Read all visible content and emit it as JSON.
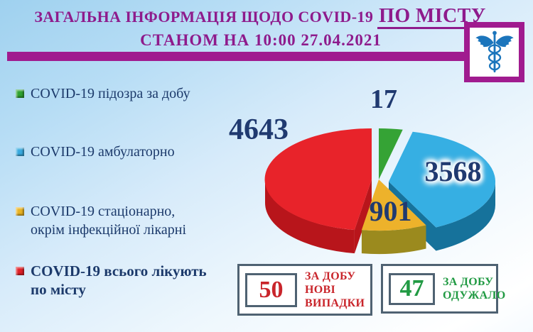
{
  "header": {
    "title_main": "ЗАГАЛЬНА ІНФОРМАЦІЯ ЩОДО COVID-19",
    "title_emph": "ПО МІСТУ",
    "subtitle": "СТАНОМ НА 10:00 27.04.2021"
  },
  "logo": {
    "icon": "caduceus-icon",
    "border_color": "#a01b8f",
    "glyph_color": "#1b75bc"
  },
  "legend": {
    "items": [
      {
        "lines": [
          "COVID-19 підозра за добу"
        ],
        "color": "#2fa12f"
      },
      {
        "lines": [
          "COVID-19 амбулаторно"
        ],
        "color": "#38aadf"
      },
      {
        "lines": [
          "COVID-19 стаціонарно,",
          "окрім інфекційної лікарні"
        ],
        "color": "#e9b322"
      },
      {
        "lines": [
          "COVID-19 всього лікують",
          "по місту"
        ],
        "color": "#df1f26"
      }
    ]
  },
  "chart_data": {
    "type": "pie",
    "style": "3d-exploded",
    "title": "ЗАГАЛЬНА ІНФОРМАЦІЯ ЩОДО COVID-19 ПО МІСТУ СТАНОМ НА 10:00 27.04.2021",
    "legend_position": "left",
    "labels_shown_as": "values",
    "slices": [
      {
        "label": "COVID-19 підозра за добу",
        "value": 17,
        "color": "#35a335",
        "dark": "#247b24"
      },
      {
        "label": "COVID-19 амбулаторно",
        "value": 3568,
        "color": "#36afe3",
        "dark": "#16729b"
      },
      {
        "label": "COVID-19 стаціонарно, окрім інфекційної лікарні",
        "value": 901,
        "color": "#edb22b",
        "dark": "#9b8a1e"
      },
      {
        "label": "COVID-19 всього лікують по місту",
        "value": 4643,
        "color": "#e8232a",
        "dark": "#b8151b"
      }
    ]
  },
  "stat_boxes": [
    {
      "value": "50",
      "lines": [
        "ЗА ДОБУ",
        "НОВІ",
        "ВИПАДКИ"
      ],
      "color": "#c9252b"
    },
    {
      "value": "47",
      "lines": [
        "ЗА ДОБУ",
        "ОДУЖАЛО"
      ],
      "color": "#219a43"
    }
  ],
  "colors": {
    "accent_magenta": "#a01b8f",
    "title_text": "#8e1b8c",
    "navy_text": "#1c3a6b",
    "box_border": "#4f6272"
  }
}
